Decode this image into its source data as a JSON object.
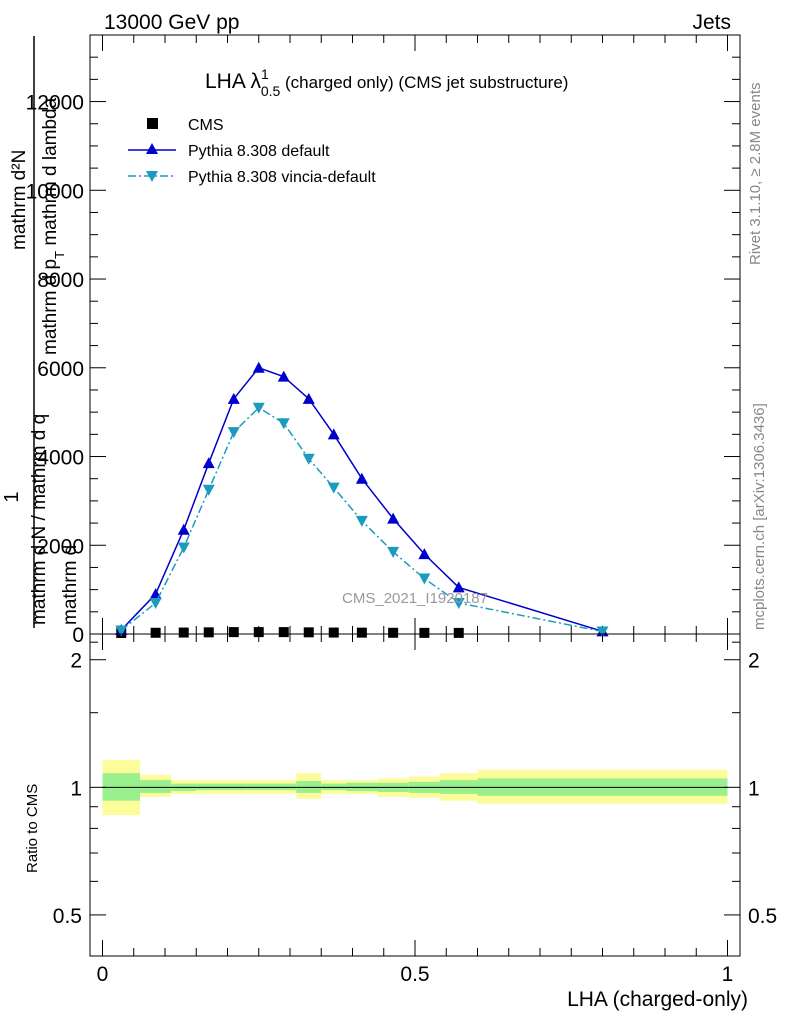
{
  "header": {
    "left": "13000 GeV pp",
    "right": "Jets"
  },
  "side_labels": {
    "rivet": "Rivet 3.1.10, ≥ 2.8M events",
    "mcplots": "mcplots.cern.ch [arXiv:1306.3436]"
  },
  "watermark": "CMS_2021_I1920187",
  "colors": {
    "cms": "#000000",
    "default": "#0000cc",
    "vincia": "#1a9bbf",
    "band_inner": "#99f08c",
    "band_outer": "#fcfc9a"
  },
  "chart_data": [
    {
      "type": "line",
      "title": {
        "main": "LHA λ",
        "sup": "1",
        "sub": "0.5",
        "rest": " (charged only) (CMS jet substructure)"
      },
      "ylabel": {
        "prefix": "1",
        "frac_top": "mathrm d N / mathrm d q",
        "frac_bottom": "mathrm d",
        "big_top": "mathrm d²N",
        "big_bottom": "mathrm d p",
        "big_bottom_sub": "T",
        "big_bottom_rest": " mathrm d lambda"
      },
      "xlim": [
        -0.02,
        1.02
      ],
      "ylim": [
        0,
        13500
      ],
      "yticks": [
        {
          "value": 0,
          "label": "0"
        },
        {
          "value": 2000,
          "label": "2000"
        },
        {
          "value": 4000,
          "label": "4000"
        },
        {
          "value": 6000,
          "label": "6000"
        },
        {
          "value": 8000,
          "label": "8000"
        },
        {
          "value": 10000,
          "label": "10000"
        },
        {
          "value": 12000,
          "label": "12000"
        }
      ],
      "legend_position": "top-left",
      "series": [
        {
          "name": "CMS",
          "marker": "square",
          "x": [
            0.03,
            0.085,
            0.13,
            0.17,
            0.21,
            0.25,
            0.29,
            0.33,
            0.37,
            0.415,
            0.465,
            0.515,
            0.57
          ],
          "values": [
            0,
            5,
            10,
            15,
            20,
            20,
            20,
            15,
            10,
            8,
            5,
            3,
            2
          ]
        },
        {
          "name": "Pythia 8.308 default",
          "marker": "triangle-up",
          "dash": "solid",
          "x": [
            0.03,
            0.085,
            0.13,
            0.17,
            0.21,
            0.25,
            0.29,
            0.33,
            0.37,
            0.415,
            0.465,
            0.515,
            0.57,
            0.8
          ],
          "values": [
            90,
            900,
            2350,
            3850,
            5300,
            6000,
            5800,
            5300,
            4500,
            3500,
            2600,
            1800,
            1050,
            60
          ]
        },
        {
          "name": "Pythia 8.308 vincia-default",
          "marker": "triangle-down",
          "dash": "dashdot",
          "x": [
            0.03,
            0.085,
            0.13,
            0.17,
            0.21,
            0.25,
            0.29,
            0.33,
            0.37,
            0.415,
            0.465,
            0.515,
            0.57,
            0.8
          ],
          "values": [
            80,
            700,
            1950,
            3250,
            4550,
            5100,
            4750,
            3950,
            3300,
            2550,
            1850,
            1250,
            700,
            55
          ]
        }
      ]
    },
    {
      "type": "area",
      "ylabel": "Ratio to CMS",
      "xlabel": "LHA (charged-only)",
      "scale": "log",
      "xlim": [
        -0.02,
        1.02
      ],
      "ylim": [
        0.4,
        2.3
      ],
      "xticks": [
        {
          "value": 0,
          "label": "0"
        },
        {
          "value": 0.5,
          "label": "0.5"
        },
        {
          "value": 1,
          "label": "1"
        }
      ],
      "yticks": [
        {
          "value": 0.5,
          "label": "0.5"
        },
        {
          "value": 1,
          "label": "1"
        },
        {
          "value": 2,
          "label": "2"
        }
      ],
      "bins": [
        {
          "lo": 0.0,
          "hi": 0.06,
          "inner": [
            0.93,
            1.08
          ],
          "outer": [
            0.86,
            1.16
          ]
        },
        {
          "lo": 0.06,
          "hi": 0.11,
          "inner": [
            0.97,
            1.04
          ],
          "outer": [
            0.95,
            1.07
          ]
        },
        {
          "lo": 0.11,
          "hi": 0.15,
          "inner": [
            0.98,
            1.02
          ],
          "outer": [
            0.965,
            1.04
          ]
        },
        {
          "lo": 0.15,
          "hi": 0.23,
          "inner": [
            0.985,
            1.02
          ],
          "outer": [
            0.965,
            1.04
          ]
        },
        {
          "lo": 0.23,
          "hi": 0.31,
          "inner": [
            0.985,
            1.02
          ],
          "outer": [
            0.965,
            1.04
          ]
        },
        {
          "lo": 0.31,
          "hi": 0.35,
          "inner": [
            0.97,
            1.035
          ],
          "outer": [
            0.94,
            1.08
          ]
        },
        {
          "lo": 0.35,
          "hi": 0.39,
          "inner": [
            0.985,
            1.02
          ],
          "outer": [
            0.965,
            1.04
          ]
        },
        {
          "lo": 0.39,
          "hi": 0.44,
          "inner": [
            0.98,
            1.025
          ],
          "outer": [
            0.965,
            1.04
          ]
        },
        {
          "lo": 0.44,
          "hi": 0.49,
          "inner": [
            0.975,
            1.025
          ],
          "outer": [
            0.95,
            1.05
          ]
        },
        {
          "lo": 0.49,
          "hi": 0.54,
          "inner": [
            0.97,
            1.03
          ],
          "outer": [
            0.945,
            1.06
          ]
        },
        {
          "lo": 0.54,
          "hi": 0.6,
          "inner": [
            0.965,
            1.04
          ],
          "outer": [
            0.93,
            1.08
          ]
        },
        {
          "lo": 0.6,
          "hi": 1.0,
          "inner": [
            0.955,
            1.05
          ],
          "outer": [
            0.915,
            1.1
          ]
        }
      ]
    }
  ]
}
